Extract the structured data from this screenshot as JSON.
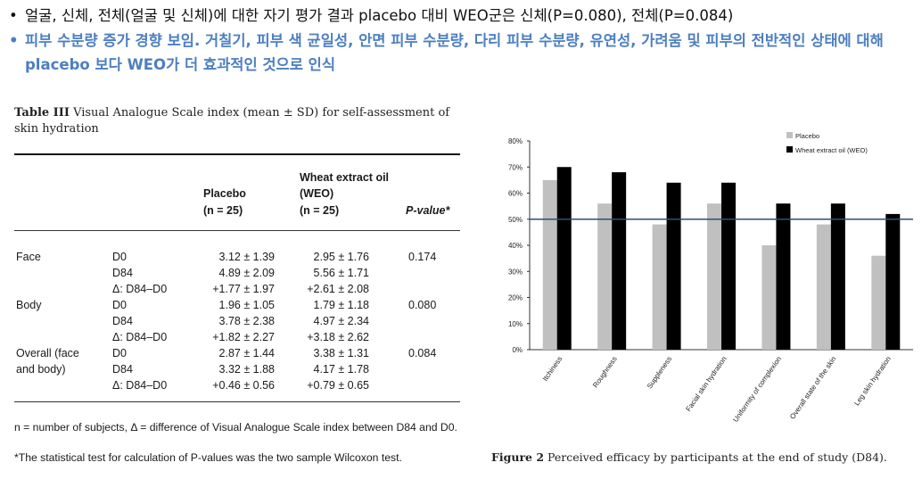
{
  "bullets": [
    {
      "text": "얼굴, 신체, 전체(얼굴 및 신체)에 대한 자기 평가 결과 placebo 대비 WEO군은 신체(P=0.080), 전체(P=0.084)"
    },
    {
      "text": "피부 수분량 증가 경향 보임. 거칠기, 피부 색 균일성, 안면 피부 수분량, 다리 피부 수분량, 유연성, 가려움 및 피부의 전반적인 상태에 대해 placebo 보다 WEO가 더 효과적인 것으로 인식"
    }
  ],
  "table": {
    "label": "Table III",
    "caption": "Visual Analogue Scale index (mean ± SD) for self-assessment of skin hydration",
    "headers": {
      "placebo": "Placebo",
      "placebo_n": "(n = 25)",
      "weo": "Wheat extract oil (WEO)",
      "weo_n": "(n = 25)",
      "pvalue": "P-value*"
    },
    "rows": [
      {
        "group": "Face",
        "time": "D0",
        "placebo": "3.12 ± 1.39",
        "weo": "2.95 ± 1.76",
        "p": "0.174"
      },
      {
        "group": "",
        "time": "D84",
        "placebo": "4.89 ± 2.09",
        "weo": "5.56 ± 1.71",
        "p": ""
      },
      {
        "group": "",
        "time": "Δ: D84–D0",
        "placebo": "+1.77 ± 1.97",
        "weo": "+2.61 ± 2.08",
        "p": ""
      },
      {
        "group": "Body",
        "time": "D0",
        "placebo": "1.96 ± 1.05",
        "weo": "1.79 ± 1.18",
        "p": "0.080"
      },
      {
        "group": "",
        "time": "D84",
        "placebo": "3.78 ± 2.38",
        "weo": "4.97 ± 2.34",
        "p": ""
      },
      {
        "group": "",
        "time": "Δ: D84–D0",
        "placebo": "+1.82 ± 2.27",
        "weo": "+3.18 ± 2.62",
        "p": ""
      },
      {
        "group": "Overall (face",
        "time": "D0",
        "placebo": "2.87 ± 1.44",
        "weo": "3.38 ± 1.31",
        "p": "0.084"
      },
      {
        "group": " and body)",
        "time": "D84",
        "placebo": "3.32 ± 1.88",
        "weo": "4.17 ± 1.78",
        "p": ""
      },
      {
        "group": "",
        "time": "Δ: D84–D0",
        "placebo": "+0.46 ± 0.56",
        "weo": "+0.79 ± 0.65",
        "p": ""
      }
    ],
    "footnote1": "n = number of subjects, Δ = difference of Visual Analogue Scale index between D84 and D0.",
    "footnote2": "*The statistical test for calculation of P-values was the two sample Wilcoxon test."
  },
  "figure": {
    "label": "Figure 2",
    "caption": "Perceived efficacy by participants at the end of study (D84)."
  },
  "chart_data": {
    "type": "bar",
    "categories": [
      "Itchiness",
      "Roughness",
      "Suppleness",
      "Facial skin hydration",
      "Uniformity of complexion",
      "Overall state of the skin",
      "Leg skin hydration"
    ],
    "series": [
      {
        "name": "Placebo",
        "color": "#c0c0c0",
        "values": [
          65,
          56,
          48,
          56,
          40,
          48,
          36
        ]
      },
      {
        "name": "Wheat extract oil (WEO)",
        "color": "#000000",
        "values": [
          70,
          68,
          64,
          64,
          56,
          56,
          52
        ]
      }
    ],
    "yticks": [
      "0%",
      "10%",
      "20%",
      "30%",
      "40%",
      "50%",
      "60%",
      "70%",
      "80%"
    ],
    "ylim": [
      0,
      80
    ],
    "reference_line": 50,
    "reference_color": "#2c4f7c",
    "legend_position": "top-right",
    "grid": false
  }
}
